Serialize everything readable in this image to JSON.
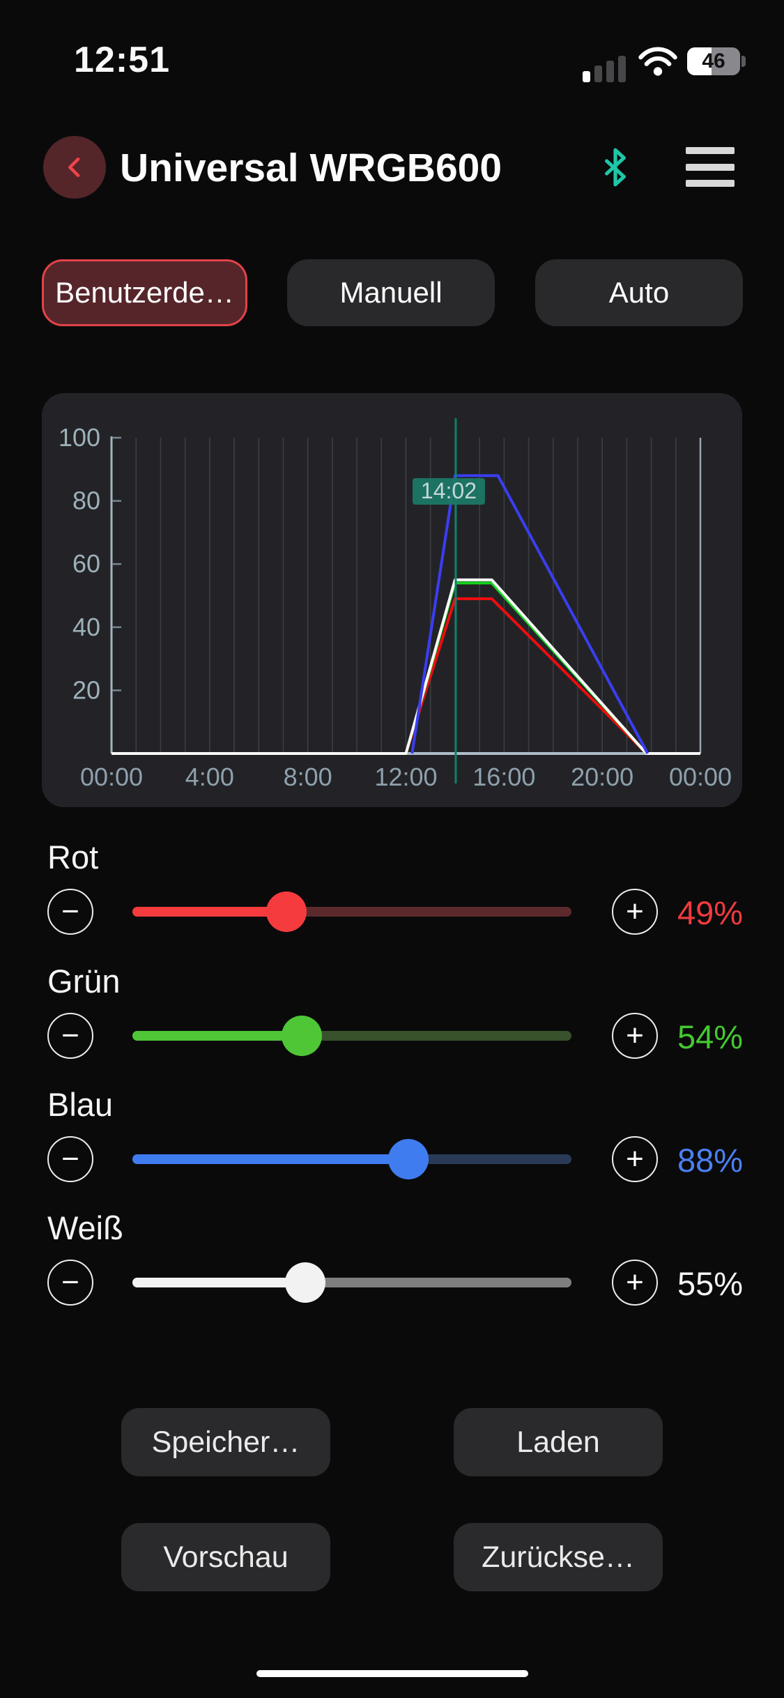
{
  "status_bar": {
    "time": "12:51",
    "battery_percent": 46,
    "battery_label": "46",
    "signal_bars_filled": 1,
    "signal_bars_total": 4
  },
  "header": {
    "title": "Universal WRGB600"
  },
  "tabs": [
    {
      "label": "Benutzerde…",
      "selected": true
    },
    {
      "label": "Manuell",
      "selected": false
    },
    {
      "label": "Auto",
      "selected": false
    }
  ],
  "chart_data": {
    "type": "line",
    "xlim_hours": [
      0,
      24
    ],
    "ylim": [
      0,
      100
    ],
    "grid": "vertical-hourly",
    "x_ticks": [
      {
        "hour": 0,
        "label": "00:00"
      },
      {
        "hour": 4,
        "label": "4:00"
      },
      {
        "hour": 8,
        "label": "8:00"
      },
      {
        "hour": 12,
        "label": "12:00"
      },
      {
        "hour": 16,
        "label": "16:00"
      },
      {
        "hour": 20,
        "label": "20:00"
      },
      {
        "hour": 24,
        "label": "00:00"
      }
    ],
    "y_ticks": [
      20,
      40,
      60,
      80,
      100
    ],
    "cursor": {
      "hour": 14.03,
      "label": "14:02"
    },
    "series": [
      {
        "name": "Rot",
        "color": "#ee0d10",
        "points": [
          [
            0,
            0
          ],
          [
            12,
            0
          ],
          [
            14,
            49
          ],
          [
            15.5,
            49
          ],
          [
            21.8,
            0
          ],
          [
            24,
            0
          ]
        ]
      },
      {
        "name": "Grün",
        "color": "#17d41f",
        "points": [
          [
            0,
            0
          ],
          [
            12,
            0
          ],
          [
            14,
            54
          ],
          [
            15.5,
            54
          ],
          [
            21.8,
            0
          ],
          [
            24,
            0
          ]
        ]
      },
      {
        "name": "Weiß",
        "color": "#fafafa",
        "points": [
          [
            0,
            0
          ],
          [
            12,
            0
          ],
          [
            14,
            55
          ],
          [
            15.5,
            55
          ],
          [
            21.8,
            0
          ],
          [
            24,
            0
          ]
        ]
      },
      {
        "name": "Blau",
        "color": "#3a3ef2",
        "points": [
          [
            12.25,
            0
          ],
          [
            14,
            88
          ],
          [
            15.75,
            88
          ],
          [
            21.85,
            0
          ]
        ]
      }
    ]
  },
  "sliders": [
    {
      "label": "Rot",
      "value": 49,
      "value_label": "49%",
      "fill_color": "#f63b3e",
      "track_color": "#5c2a2c",
      "text_color": "#f23a3e"
    },
    {
      "label": "Grün",
      "value": 54,
      "value_label": "54%",
      "fill_color": "#4ec636",
      "track_color": "#37522c",
      "text_color": "#44c930"
    },
    {
      "label": "Blau",
      "value": 88,
      "value_label": "88%",
      "fill_color": "#3f7cf0",
      "track_color": "#2a3a56",
      "text_color": "#4b80f2"
    },
    {
      "label": "Weiß",
      "value": 55,
      "value_label": "55%",
      "fill_color": "#f2f2f2",
      "track_color": "#7f7f7f",
      "text_color": "#f5f5f5"
    }
  ],
  "slider_controls": {
    "minus": "−",
    "plus": "+"
  },
  "actions": [
    {
      "label": "Speicher…"
    },
    {
      "label": "Laden"
    },
    {
      "label": "Vorschau"
    },
    {
      "label": "Zurückse…"
    }
  ]
}
